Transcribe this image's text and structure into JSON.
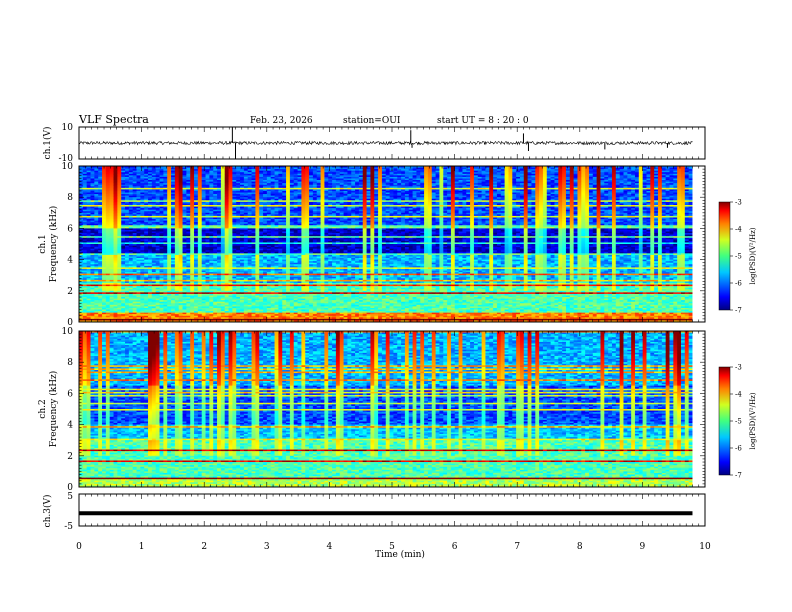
{
  "header": {
    "title": "VLF Spectra",
    "date": "Feb. 23, 2026",
    "station": "station=OUI",
    "start": "start  UT  =  8 : 20 : 0"
  },
  "panels": {
    "ch1": {
      "ylabel": "ch.1(V)",
      "ticks": [
        "10",
        "-10"
      ]
    },
    "spec1": {
      "ylabel_a": "ch.1",
      "ylabel_b": "Frequency  (kHz)"
    },
    "spec2": {
      "ylabel_a": "ch.2",
      "ylabel_b": "Frequency  (kHz)"
    },
    "ch3": {
      "ylabel": "ch.3(V)",
      "ticks": [
        "5",
        "-5"
      ]
    }
  },
  "colorbar": {
    "label": "log(PSD)(V²/Hz)",
    "ticks": [
      "-3",
      "-4",
      "-5",
      "-6",
      "-7"
    ],
    "range": [
      -7,
      -3
    ]
  },
  "chart_data": [
    {
      "type": "line",
      "title": "ch.1(V)",
      "ylabel": "ch.1(V)",
      "xlim": [
        0,
        10
      ],
      "ylim": [
        -10,
        10
      ],
      "baseline": 0,
      "noise_amplitude": 1,
      "x_end": 9.8,
      "spikes": [
        {
          "x": 2.45,
          "y": 10
        },
        {
          "x": 2.5,
          "y": -10
        },
        {
          "x": 5.3,
          "y": 8
        },
        {
          "x": 5.32,
          "y": -3
        },
        {
          "x": 7.1,
          "y": 6
        },
        {
          "x": 7.18,
          "y": -5
        },
        {
          "x": 8.4,
          "y": -4
        },
        {
          "x": 9.4,
          "y": -3
        }
      ]
    },
    {
      "type": "heatmap",
      "title": "ch.1",
      "ylabel": "Frequency  (kHz)",
      "xlim": [
        0,
        10
      ],
      "ylim": [
        0,
        10
      ],
      "x_end": 9.8,
      "x_ticks": [
        0,
        1,
        2,
        3,
        4,
        5,
        6,
        7,
        8,
        9,
        10
      ],
      "y_ticks": [
        0,
        2,
        4,
        6,
        8,
        10
      ],
      "color_scale": "jet",
      "zlim": [
        -7,
        -3
      ]
    },
    {
      "type": "heatmap",
      "title": "ch.2",
      "ylabel": "Frequency  (kHz)",
      "xlim": [
        0,
        10
      ],
      "ylim": [
        0,
        10
      ],
      "x_end": 9.8,
      "x_ticks": [
        0,
        1,
        2,
        3,
        4,
        5,
        6,
        7,
        8,
        9,
        10
      ],
      "y_ticks": [
        0,
        2,
        4,
        6,
        8,
        10
      ],
      "color_scale": "jet",
      "zlim": [
        -7,
        -3
      ]
    },
    {
      "type": "line",
      "title": "ch.3(V)",
      "ylabel": "ch.3(V)",
      "xlabel": "Time  (min)",
      "xlim": [
        0,
        10
      ],
      "ylim": [
        -5,
        5
      ],
      "x_end": 9.8,
      "baseline": -1,
      "x_ticks": [
        "0",
        "1",
        "2",
        "3",
        "4",
        "5",
        "6",
        "7",
        "8",
        "9",
        "10"
      ]
    }
  ]
}
